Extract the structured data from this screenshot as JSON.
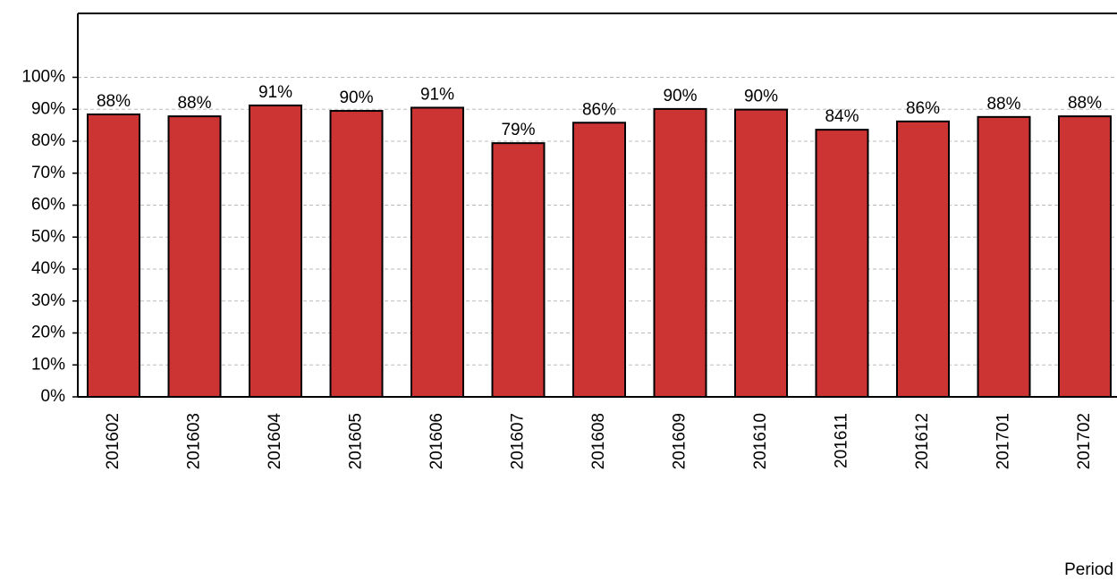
{
  "chart_data": {
    "type": "bar",
    "x_label": "Period",
    "categories": [
      "201602",
      "201603",
      "201604",
      "201605",
      "201606",
      "201607",
      "201608",
      "201609",
      "201610",
      "201611",
      "201612",
      "201701",
      "201702"
    ],
    "values": [
      88.4,
      87.8,
      91.2,
      89.5,
      90.5,
      79.4,
      85.8,
      90.1,
      89.9,
      83.6,
      86.2,
      87.6,
      87.8
    ],
    "value_labels": [
      "88%",
      "88%",
      "91%",
      "90%",
      "91%",
      "79%",
      "86%",
      "90%",
      "90%",
      "84%",
      "86%",
      "88%",
      "88%"
    ],
    "color": "#cc3333",
    "ylim": [
      0,
      120
    ],
    "yticks": [
      {
        "value": 0,
        "label": "0%"
      },
      {
        "value": 10,
        "label": "10%"
      },
      {
        "value": 20,
        "label": "20%"
      },
      {
        "value": 30,
        "label": "30%"
      },
      {
        "value": 40,
        "label": "40%"
      },
      {
        "value": 50,
        "label": "50%"
      },
      {
        "value": 60,
        "label": "60%"
      },
      {
        "value": 70,
        "label": "70%"
      },
      {
        "value": 80,
        "label": "80%"
      },
      {
        "value": 90,
        "label": "90%"
      },
      {
        "value": 100,
        "label": "100%"
      }
    ],
    "grid": true
  }
}
